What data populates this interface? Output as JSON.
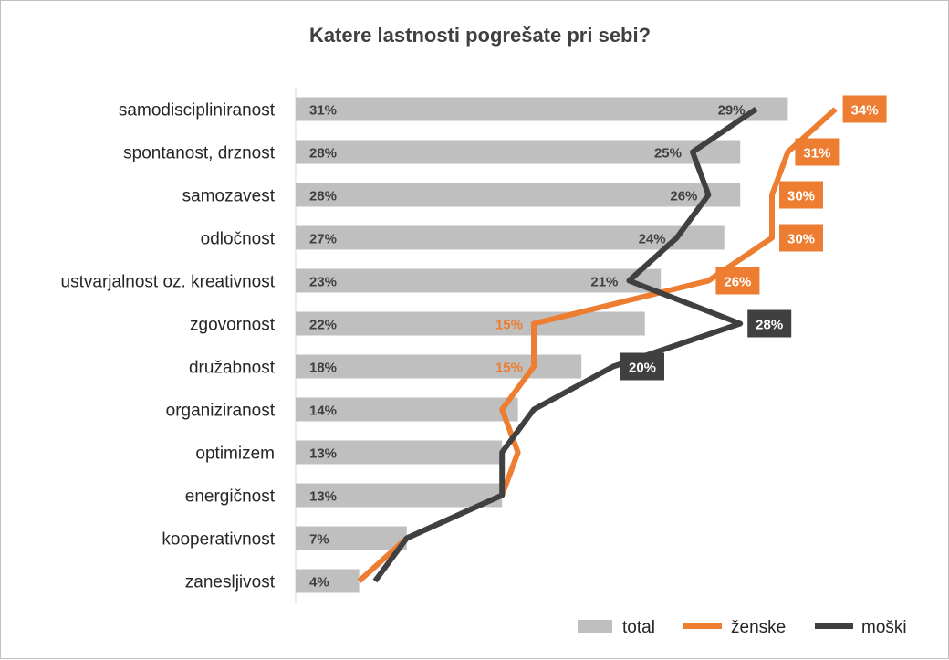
{
  "chart_data": {
    "type": "bar",
    "title": "Katere lastnosti pogrešate pri sebi?",
    "categories": [
      "samodiscipliniranost",
      "spontanost, drznost",
      "samozavest",
      "odločnost",
      "ustvarjalnost oz. kreativnost",
      "zgovornost",
      "družabnost",
      "organiziranost",
      "optimizem",
      "energičnost",
      "kooperativnost",
      "zanesljivost"
    ],
    "series": [
      {
        "name": "total",
        "chart": "bar",
        "color": "#bfbfbf",
        "values": [
          31,
          28,
          28,
          27,
          23,
          22,
          18,
          14,
          13,
          13,
          7,
          4
        ]
      },
      {
        "name": "ženske",
        "chart": "line",
        "color": "#ed7d31",
        "values": [
          34,
          31,
          30,
          30,
          26,
          15,
          15,
          13,
          14,
          13,
          7,
          4
        ]
      },
      {
        "name": "moški",
        "chart": "line",
        "color": "#404040",
        "values": [
          29,
          25,
          26,
          24,
          21,
          28,
          20,
          15,
          13,
          13,
          7,
          5
        ]
      }
    ],
    "total_labels": [
      "31%",
      "28%",
      "28%",
      "27%",
      "23%",
      "22%",
      "18%",
      "14%",
      "13%",
      "13%",
      "7%",
      "4%"
    ],
    "zenske_labels": [
      {
        "index": 0,
        "text": "34%",
        "boxed": true
      },
      {
        "index": 1,
        "text": "31%",
        "boxed": true
      },
      {
        "index": 2,
        "text": "30%",
        "boxed": true
      },
      {
        "index": 3,
        "text": "30%",
        "boxed": true
      },
      {
        "index": 4,
        "text": "26%",
        "boxed": true
      },
      {
        "index": 5,
        "text": "15%",
        "boxed": false
      },
      {
        "index": 6,
        "text": "15%",
        "boxed": false
      }
    ],
    "moski_labels": [
      {
        "index": 0,
        "text": "29%",
        "boxed": false
      },
      {
        "index": 1,
        "text": "25%",
        "boxed": false
      },
      {
        "index": 2,
        "text": "26%",
        "boxed": false
      },
      {
        "index": 3,
        "text": "24%",
        "boxed": false
      },
      {
        "index": 4,
        "text": "21%",
        "boxed": false
      },
      {
        "index": 5,
        "text": "28%",
        "boxed": true
      },
      {
        "index": 6,
        "text": "20%",
        "boxed": true
      }
    ],
    "xlim": [
      0,
      34
    ],
    "legend_position": "bottom-right",
    "grid": false
  }
}
